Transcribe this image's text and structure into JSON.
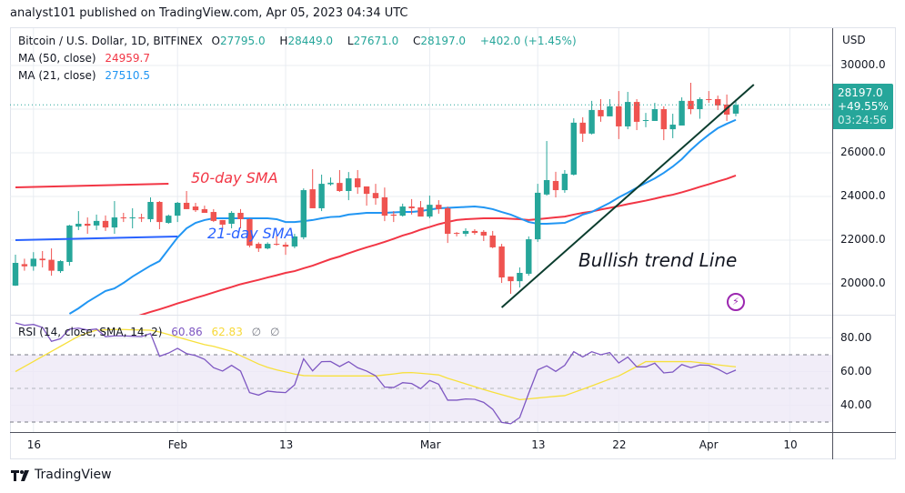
{
  "published": "analyst101 published on TradingView.com, Apr 05, 2023 04:34 UTC",
  "legend": {
    "symbol": "Bitcoin / U.S. Dollar, 1D, BITFINEX",
    "open_label": "O",
    "open": "27795.0",
    "high_label": "H",
    "high": "28449.0",
    "low_label": "L",
    "low": "27671.0",
    "close_label": "C",
    "close": "28197.0",
    "change": "+402.0 (+1.45%)",
    "ma50_label": "MA (50, close)",
    "ma50_value": "24959.7",
    "ma21_label": "MA (21, close)",
    "ma21_value": "27510.5",
    "rsi_label": "RSI (14, close, SMA, 14, 2)",
    "rsi_value": "60.86",
    "rsi_sma_value": "62.83",
    "na1": "∅",
    "na2": "∅"
  },
  "price_tag": {
    "price": "28197.0",
    "pct": "+49.55%",
    "countdown": "03:24:56"
  },
  "currency": "USD",
  "brand": "TradingView",
  "annotations": {
    "sma50_text": "50-day SMA",
    "sma21_text": "21-day SMA",
    "trend_text": "Bullish trend Line",
    "lines": [
      {
        "name": "sma50-marker-line",
        "color": "#f23645",
        "from": [
          "2023-01-14",
          24417
        ],
        "to": [
          "2023-01-31",
          24583
        ]
      },
      {
        "name": "sma21-marker-line",
        "color": "#2962ff",
        "from": [
          "2023-01-14",
          22000
        ],
        "to": [
          "2023-02-01",
          22167
        ]
      },
      {
        "name": "bullish-trend-line",
        "color": "#0b3d2e",
        "from": [
          "2023-03-09",
          18917
        ],
        "to": [
          "2023-04-06",
          29125
        ]
      }
    ],
    "icon": "lightning-icon"
  },
  "colors": {
    "up": "#26a69a",
    "down": "#ef5350",
    "ma50": "#f23645",
    "ma21": "#2196f3",
    "rsi": "#7e57c2",
    "rsi_sma": "#f7e03c",
    "rsi_band": "#ede9f6"
  },
  "chart_data": [
    {
      "type": "candlestick",
      "title": "Bitcoin / U.S. Dollar, 1D, BITFINEX",
      "ylabel": "USD",
      "ylim": [
        18500,
        31200
      ],
      "grid": true,
      "y_ticks": [
        "30000.0",
        "28000.0",
        "26000.0",
        "24000.0",
        "22000.0",
        "20000.0"
      ],
      "x_ticks": [
        {
          "label": "16",
          "date": "2023-01-16"
        },
        {
          "label": "Feb",
          "date": "2023-02-01"
        },
        {
          "label": "13",
          "date": "2023-02-13"
        },
        {
          "label": "Mar",
          "date": "2023-03-01"
        },
        {
          "label": "13",
          "date": "2023-03-13"
        },
        {
          "label": "22",
          "date": "2023-03-22"
        },
        {
          "label": "Apr",
          "date": "2023-04-01"
        },
        {
          "label": "10",
          "date": "2023-04-10"
        }
      ],
      "ohlc_columns": [
        "date",
        "open",
        "high",
        "low",
        "close"
      ],
      "candles": [
        [
          "2023-01-14",
          19917,
          21333,
          19900,
          20958
        ],
        [
          "2023-01-15",
          20900,
          21150,
          20600,
          20800
        ],
        [
          "2023-01-16",
          20800,
          21450,
          20600,
          21150
        ],
        [
          "2023-01-17",
          21150,
          21500,
          20750,
          21080
        ],
        [
          "2023-01-18",
          21100,
          21620,
          20370,
          20600
        ],
        [
          "2023-01-19",
          20580,
          21080,
          20500,
          21040
        ],
        [
          "2023-01-20",
          21000,
          22700,
          20830,
          22670
        ],
        [
          "2023-01-21",
          22620,
          23330,
          22460,
          22750
        ],
        [
          "2023-01-22",
          22750,
          23040,
          22290,
          22660
        ],
        [
          "2023-01-23",
          22670,
          23170,
          22460,
          22880
        ],
        [
          "2023-01-24",
          22880,
          23130,
          22420,
          22580
        ],
        [
          "2023-01-25",
          22580,
          23790,
          22290,
          23040
        ],
        [
          "2023-01-26",
          23040,
          23250,
          22830,
          23000
        ],
        [
          "2023-01-27",
          23000,
          23460,
          22540,
          23040
        ],
        [
          "2023-01-28",
          23040,
          23210,
          22830,
          22990
        ],
        [
          "2023-01-29",
          22960,
          23960,
          22830,
          23750
        ],
        [
          "2023-01-30",
          23750,
          23790,
          22500,
          22830
        ],
        [
          "2023-01-31",
          22790,
          23170,
          22750,
          23120
        ],
        [
          "2023-02-01",
          23120,
          23750,
          22830,
          23710
        ],
        [
          "2023-02-02",
          23710,
          24250,
          23420,
          23420
        ],
        [
          "2023-02-03",
          23540,
          23710,
          23290,
          23370
        ],
        [
          "2023-02-04",
          23420,
          23580,
          23250,
          23250
        ],
        [
          "2023-02-05",
          23290,
          23420,
          22830,
          22880
        ],
        [
          "2023-02-06",
          22920,
          22920,
          22500,
          22710
        ],
        [
          "2023-02-07",
          22750,
          23330,
          22540,
          23250
        ],
        [
          "2023-02-08",
          23250,
          23420,
          22540,
          22960
        ],
        [
          "2023-02-09",
          22960,
          23000,
          21670,
          21750
        ],
        [
          "2023-02-10",
          21830,
          21900,
          21460,
          21620
        ],
        [
          "2023-02-11",
          21620,
          21900,
          21580,
          21830
        ],
        [
          "2023-02-12",
          21830,
          22210,
          21750,
          21790
        ],
        [
          "2023-02-13",
          21790,
          21900,
          21330,
          21700
        ],
        [
          "2023-02-14",
          21710,
          22290,
          21630,
          22170
        ],
        [
          "2023-02-15",
          22130,
          24370,
          22040,
          24290
        ],
        [
          "2023-02-16",
          24330,
          25250,
          23460,
          23460
        ],
        [
          "2023-02-17",
          23460,
          25000,
          23330,
          24580
        ],
        [
          "2023-02-18",
          24560,
          24870,
          24500,
          24630
        ],
        [
          "2023-02-19",
          24620,
          25210,
          24210,
          24250
        ],
        [
          "2023-02-20",
          24250,
          25120,
          23830,
          24830
        ],
        [
          "2023-02-21",
          24830,
          25210,
          24120,
          24420
        ],
        [
          "2023-02-22",
          24460,
          24460,
          23580,
          24120
        ],
        [
          "2023-02-23",
          24160,
          24580,
          23620,
          23920
        ],
        [
          "2023-02-24",
          23960,
          24410,
          22870,
          23120
        ],
        [
          "2023-02-25",
          23170,
          23330,
          22830,
          23120
        ],
        [
          "2023-02-26",
          23120,
          23670,
          23080,
          23540
        ],
        [
          "2023-02-27",
          23540,
          23880,
          23170,
          23460
        ],
        [
          "2023-02-28",
          23500,
          23790,
          23120,
          23080
        ],
        [
          "2023-03-01",
          23080,
          24040,
          23000,
          23620
        ],
        [
          "2023-03-02",
          23620,
          23830,
          23210,
          23420
        ],
        [
          "2023-03-03",
          23460,
          23540,
          21870,
          22290
        ],
        [
          "2023-03-04",
          22330,
          22370,
          22170,
          22290
        ],
        [
          "2023-03-05",
          22290,
          22540,
          22170,
          22420
        ],
        [
          "2023-03-06",
          22420,
          22500,
          22250,
          22330
        ],
        [
          "2023-03-07",
          22380,
          22460,
          21960,
          22210
        ],
        [
          "2023-03-08",
          22210,
          22420,
          21630,
          21670
        ],
        [
          "2023-03-09",
          21710,
          21830,
          20040,
          20290
        ],
        [
          "2023-03-10",
          20330,
          20330,
          19540,
          20120
        ],
        [
          "2023-03-11",
          20120,
          20750,
          19830,
          20500
        ],
        [
          "2023-03-12",
          20460,
          22170,
          20370,
          22040
        ],
        [
          "2023-03-13",
          22040,
          24580,
          21920,
          24170
        ],
        [
          "2023-03-14",
          24090,
          26540,
          24040,
          24750
        ],
        [
          "2023-03-15",
          24710,
          25130,
          23960,
          24290
        ],
        [
          "2023-03-16",
          24290,
          25210,
          24170,
          25040
        ],
        [
          "2023-03-17",
          25000,
          27580,
          24960,
          27380
        ],
        [
          "2023-03-18",
          27380,
          27630,
          26500,
          26880
        ],
        [
          "2023-03-19",
          26880,
          28380,
          26840,
          27960
        ],
        [
          "2023-03-20",
          27960,
          28460,
          27420,
          27670
        ],
        [
          "2023-03-21",
          27670,
          28460,
          27750,
          28130
        ],
        [
          "2023-03-22",
          28130,
          28830,
          26630,
          27210
        ],
        [
          "2023-03-23",
          27210,
          28790,
          27080,
          28330
        ],
        [
          "2023-03-24",
          28330,
          28460,
          27040,
          27420
        ],
        [
          "2023-03-25",
          27460,
          27830,
          27170,
          27500
        ],
        [
          "2023-03-26",
          27460,
          28290,
          27460,
          28000
        ],
        [
          "2023-03-27",
          28000,
          28130,
          26580,
          27080
        ],
        [
          "2023-03-28",
          27080,
          27790,
          26670,
          27290
        ],
        [
          "2023-03-29",
          27250,
          28540,
          27250,
          28380
        ],
        [
          "2023-03-30",
          28380,
          29210,
          27770,
          28000
        ],
        [
          "2023-03-31",
          28000,
          28540,
          27560,
          28460
        ],
        [
          "2023-04-01",
          28460,
          28830,
          28290,
          28420
        ],
        [
          "2023-04-02",
          28460,
          28620,
          27960,
          28170
        ],
        [
          "2023-04-03",
          28210,
          28670,
          27460,
          27750
        ],
        [
          "2023-04-04",
          27795,
          28449,
          27671,
          28197
        ]
      ],
      "series": [
        {
          "name": "MA (50, close)",
          "values": [
            null,
            null,
            null,
            null,
            null,
            null,
            null,
            null,
            null,
            null,
            18040,
            18170,
            18310,
            18450,
            18580,
            18710,
            18830,
            18960,
            19100,
            19220,
            19350,
            19470,
            19600,
            19730,
            19850,
            19980,
            20080,
            20180,
            20290,
            20390,
            20500,
            20580,
            20710,
            20830,
            20980,
            21130,
            21250,
            21400,
            21540,
            21670,
            21790,
            21920,
            22060,
            22210,
            22330,
            22480,
            22600,
            22730,
            22830,
            22920,
            22960,
            22980,
            23000,
            23000,
            23000,
            22980,
            22960,
            22920,
            22960,
            23000,
            23040,
            23080,
            23170,
            23250,
            23310,
            23400,
            23480,
            23560,
            23650,
            23730,
            23810,
            23900,
            24000,
            24080,
            24190,
            24310,
            24440,
            24560,
            24690,
            24810,
            24960
          ]
        },
        {
          "name": "MA (21, close)",
          "values": [
            null,
            null,
            null,
            null,
            null,
            null,
            18625,
            18875,
            19170,
            19420,
            19670,
            19790,
            20040,
            20330,
            20580,
            20830,
            21040,
            21580,
            22120,
            22540,
            22790,
            22920,
            23000,
            23000,
            23000,
            23000,
            23000,
            23000,
            23000,
            22960,
            22830,
            22830,
            22870,
            22920,
            23000,
            23060,
            23080,
            23170,
            23210,
            23250,
            23250,
            23250,
            23270,
            23290,
            23290,
            23330,
            23400,
            23460,
            23480,
            23500,
            23520,
            23540,
            23500,
            23420,
            23290,
            23170,
            23000,
            22830,
            22750,
            22750,
            22770,
            22790,
            22960,
            23170,
            23290,
            23500,
            23710,
            23960,
            24170,
            24400,
            24620,
            24830,
            25080,
            25370,
            25710,
            26130,
            26500,
            26830,
            27130,
            27330,
            27510
          ]
        }
      ]
    },
    {
      "type": "line",
      "title": "RSI (14, close, SMA, 14, 2)",
      "ylim": [
        25,
        89
      ],
      "y_ticks": [
        "80.00",
        "60.00",
        "40.00"
      ],
      "bands": {
        "upper": 70,
        "middle": 50,
        "lower": 30
      },
      "series": [
        {
          "name": "RSI",
          "values": [
            88.9,
            87.5,
            88,
            86.2,
            78,
            79.5,
            85.3,
            85.8,
            84.7,
            85.3,
            80.8,
            81.2,
            81.2,
            81,
            80.8,
            82.6,
            69.1,
            71,
            73.8,
            70.7,
            69.5,
            67.3,
            62.3,
            60.3,
            63.7,
            60.3,
            47.5,
            46,
            48.4,
            47.8,
            47.5,
            52.1,
            67.6,
            60.4,
            65.9,
            66,
            63,
            65.9,
            62.3,
            60.3,
            57.5,
            50.8,
            50.5,
            53.4,
            52.9,
            49.8,
            54.7,
            52.5,
            43,
            43,
            43.7,
            43.5,
            41.7,
            37.6,
            29.8,
            29,
            32.7,
            47.1,
            61,
            63.4,
            60.1,
            63.7,
            71.8,
            68.7,
            71.8,
            70,
            71.3,
            65.1,
            68.6,
            62.8,
            62.8,
            65,
            59.2,
            59.7,
            64.2,
            62.3,
            63.9,
            63.7,
            61.5,
            58.6,
            60.86
          ]
        },
        {
          "name": "SMA",
          "values": [
            60,
            63,
            66,
            69,
            72,
            75,
            78,
            81,
            83,
            84.6,
            84.8,
            85,
            85,
            84.8,
            84.7,
            84.6,
            83.5,
            82,
            80.5,
            79,
            77.5,
            76,
            75,
            73.5,
            72,
            69.5,
            67,
            64.5,
            62.5,
            61,
            59.8,
            58.5,
            57.6,
            57.5,
            57.4,
            57.4,
            57.4,
            57.4,
            57.4,
            57.4,
            57.4,
            58,
            58.6,
            59.3,
            59.4,
            59,
            58.5,
            58,
            56,
            54.4,
            52.7,
            51,
            49.3,
            47.8,
            46.3,
            44.8,
            43.3,
            43.8,
            44.3,
            44.8,
            45.3,
            45.7,
            47.6,
            49.5,
            51.5,
            53.5,
            55.5,
            57.4,
            60.2,
            63,
            65.9,
            65.9,
            65.9,
            65.9,
            65.9,
            65.9,
            65.3,
            64.7,
            64,
            63.4,
            62.83
          ]
        }
      ]
    }
  ]
}
